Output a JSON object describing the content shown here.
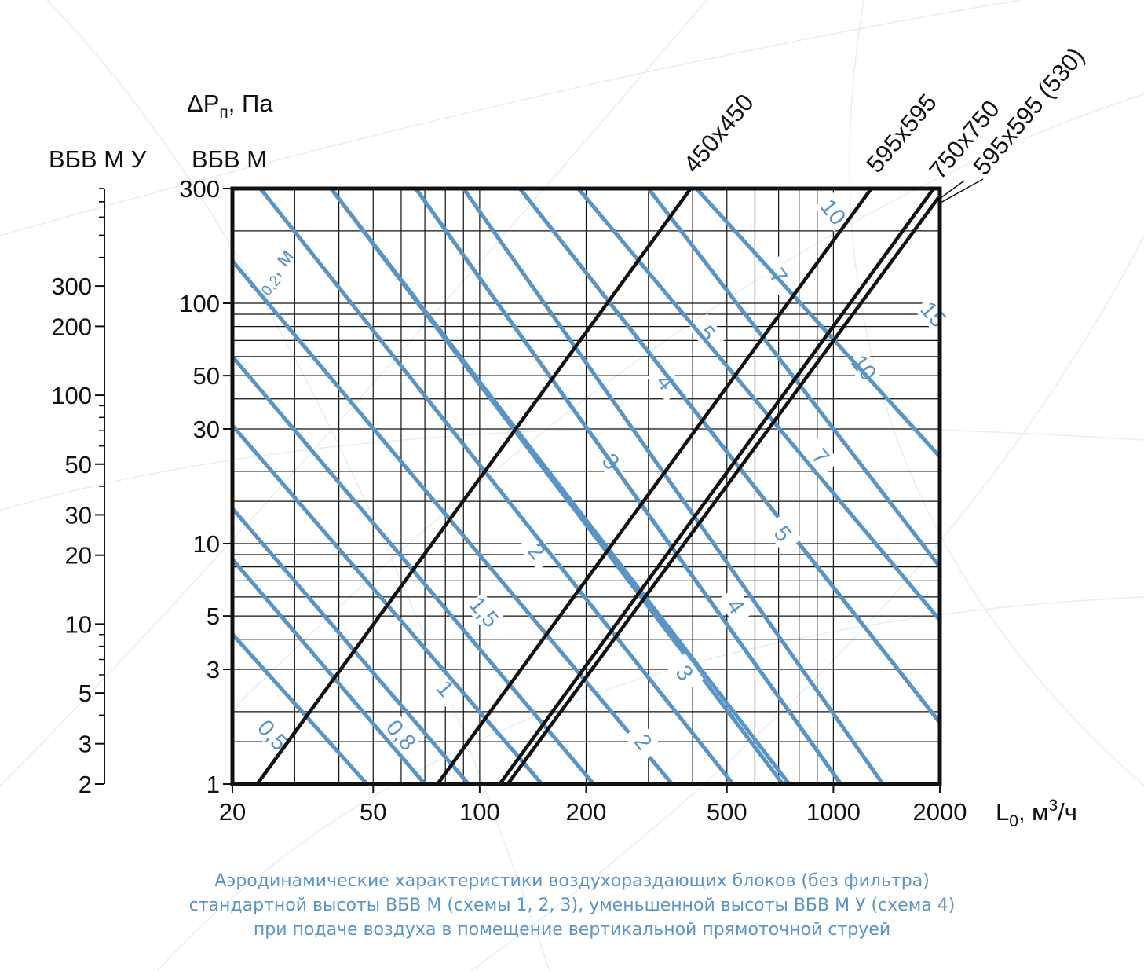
{
  "chart_data": {
    "type": "line",
    "x_scale": "log",
    "y_scale": "log",
    "xlim": [
      20,
      2000
    ],
    "ylim": [
      1,
      300
    ],
    "grid": true,
    "x_axis_label": "L",
    "x_axis_label_sub": "0",
    "x_axis_label_unit": ", м",
    "x_axis_label_sup": "3",
    "x_axis_label_tail": "/ч",
    "y_axis_label_main": "ΔP",
    "y_axis_label_sub": "п",
    "y_axis_label_unit": ", Па",
    "y_axis_name_left": "ВБВ М У",
    "y_axis_name_right": "ВБВ М",
    "x_ticks": [
      {
        "value": 20,
        "label": "20"
      },
      {
        "value": 50,
        "label": "50"
      },
      {
        "value": 100,
        "label": "100"
      },
      {
        "value": 200,
        "label": "200"
      },
      {
        "value": 500,
        "label": "500"
      },
      {
        "value": 1000,
        "label": "1000"
      },
      {
        "value": 2000,
        "label": "2000"
      }
    ],
    "y_ticks": [
      {
        "value": 1,
        "label": "1"
      },
      {
        "value": 3,
        "label": "3"
      },
      {
        "value": 5,
        "label": "5"
      },
      {
        "value": 10,
        "label": "10"
      },
      {
        "value": 30,
        "label": "30"
      },
      {
        "value": 50,
        "label": "50"
      },
      {
        "value": 100,
        "label": "100"
      },
      {
        "value": 300,
        "label": "300"
      }
    ],
    "secondary_y_axis": {
      "ylim": [
        2,
        800
      ],
      "ticks": [
        {
          "value": 2,
          "label": "2"
        },
        {
          "value": 3,
          "label": "3"
        },
        {
          "value": 5,
          "label": "5"
        },
        {
          "value": 10,
          "label": "10"
        },
        {
          "value": 20,
          "label": "20"
        },
        {
          "value": 30,
          "label": "30"
        },
        {
          "value": 50,
          "label": "50"
        },
        {
          "value": 100,
          "label": "100"
        },
        {
          "value": 200,
          "label": "200"
        },
        {
          "value": 300,
          "label": "300"
        }
      ]
    },
    "series": [
      {
        "name": "450х450",
        "points": [
          [
            23.5,
            1
          ],
          [
            395,
            300
          ]
        ]
      },
      {
        "name": "595х595",
        "points": [
          [
            76,
            1
          ],
          [
            1280,
            300
          ]
        ]
      },
      {
        "name": "750х750",
        "points": [
          [
            114,
            1
          ],
          [
            1920,
            300
          ]
        ]
      },
      {
        "name": "595х595 (530)",
        "points": [
          [
            120,
            1
          ],
          [
            2000,
            280
          ]
        ]
      }
    ],
    "throw_lines_label": "l",
    "throw_lines_label_sub": "0,2",
    "throw_lines_label_unit": ", м",
    "throw_lines": [
      {
        "label": "0,5",
        "label_at": [
          26,
          1.6
        ],
        "points": [
          [
            20,
            4.2
          ],
          [
            48,
            1
          ]
        ]
      },
      {
        "label": "0,8",
        "label_at": [
          60,
          1.6
        ],
        "points": [
          [
            20,
            8.6
          ],
          [
            70,
            1
          ]
        ]
      },
      {
        "label": "1",
        "label_at": [
          80,
          2.5
        ],
        "points": [
          [
            20,
            14
          ],
          [
            93,
            1
          ]
        ]
      },
      {
        "label": "1,5",
        "label_at": [
          103,
          5.2
        ],
        "points": [
          [
            20,
            31
          ],
          [
            150,
            1
          ]
        ]
      },
      {
        "label": "2",
        "label_at": [
          145,
          9.3
        ],
        "points": [
          [
            20,
            60
          ],
          [
            210,
            1
          ]
        ]
      },
      {
        "label": "3",
        "label_at": [
          235,
          22
        ],
        "points": [
          [
            20,
            150
          ],
          [
            350,
            1
          ]
        ]
      },
      {
        "label": "4",
        "label_at": [
          335,
          47
        ],
        "points": [
          [
            24,
            300
          ],
          [
            520,
            1
          ]
        ]
      },
      {
        "label": "5",
        "label_at": [
          440,
          75
        ],
        "points": [
          [
            38,
            300
          ],
          [
            720,
            1
          ]
        ]
      },
      {
        "label": "7",
        "label_at": [
          700,
          130
        ],
        "points": [
          [
            66,
            300
          ],
          [
            1050,
            1
          ]
        ]
      },
      {
        "label": "10",
        "label_at": [
          1000,
          240
        ],
        "points": [
          [
            130,
            300
          ],
          [
            2000,
            1.8
          ]
        ]
      }
    ],
    "throw_lines_secondary": [
      {
        "label": "2",
        "label_at": [
          290,
          1.5
        ],
        "points": [
          [
            38,
            300
          ],
          [
            750,
            1
          ]
        ]
      },
      {
        "label": "3",
        "label_at": [
          380,
          2.9
        ],
        "points": [
          [
            66,
            300
          ],
          [
            1050,
            1
          ]
        ]
      },
      {
        "label": "4",
        "label_at": [
          530,
          5.5
        ],
        "points": [
          [
            90,
            300
          ],
          [
            1380,
            1
          ]
        ]
      },
      {
        "label": "5",
        "label_at": [
          720,
          11
        ],
        "points": [
          [
            130,
            300
          ],
          [
            2000,
            1.8
          ]
        ]
      },
      {
        "label": "7",
        "label_at": [
          920,
          23
        ],
        "points": [
          [
            190,
            300
          ],
          [
            2000,
            4.8
          ]
        ]
      },
      {
        "label": "10",
        "label_at": [
          1220,
          54
        ],
        "points": [
          [
            300,
            300
          ],
          [
            2000,
            8
          ]
        ]
      },
      {
        "label": "15",
        "label_at": [
          1920,
          90
        ],
        "points": [
          [
            410,
            300
          ],
          [
            2000,
            23
          ]
        ]
      }
    ]
  },
  "caption": [
    "Аэродинамические характеристики воздухораздающих блоков (без фильтра)",
    "стандартной высоты ВБВ М (схемы 1, 2, 3), уменьшенной высоты ВБВ М У (схема 4)",
    "при подаче воздуха в помещение вертикальной прямоточной струей"
  ],
  "colors": {
    "throw": "#5a94c4",
    "frame": "#111111",
    "caption": "#5a94c4"
  }
}
